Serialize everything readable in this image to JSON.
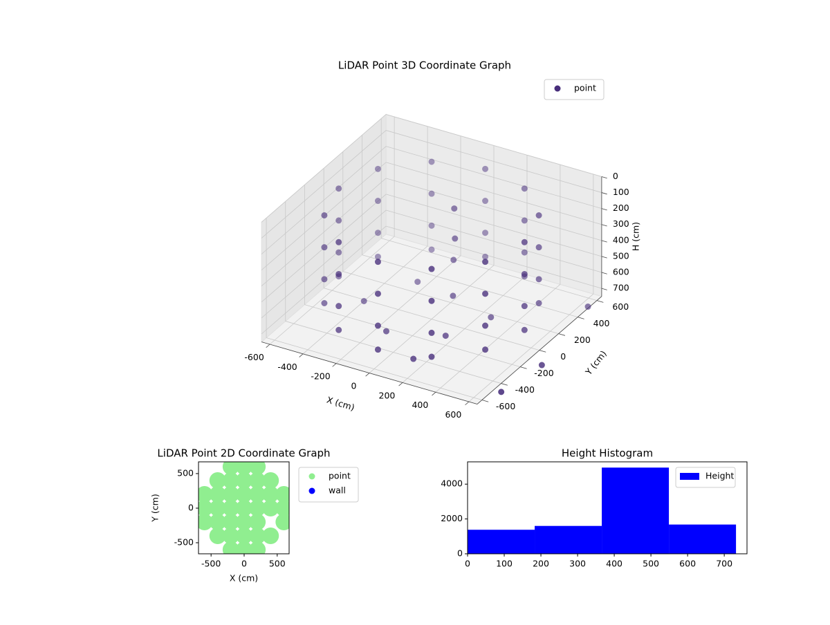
{
  "chart_data": [
    {
      "type": "scatter3d",
      "title": "LiDAR Point 3D Coordinate Graph",
      "xlabel": "X (cm)",
      "ylabel": "Y (cm)",
      "zlabel": "H (cm)",
      "xlim": [
        -650,
        650
      ],
      "ylim": [
        -650,
        650
      ],
      "zlim": [
        0,
        750
      ],
      "zinverted": true,
      "xticks": [
        -600,
        -400,
        -200,
        0,
        200,
        400,
        600
      ],
      "yticks": [
        -600,
        -400,
        -200,
        0,
        200,
        400,
        600
      ],
      "zticks": [
        0,
        100,
        200,
        300,
        400,
        500,
        600,
        700
      ],
      "grid": true,
      "legend": "upper right",
      "series": [
        {
          "name": "point",
          "color": "#472d7b",
          "x": [
            560,
            485,
            280,
            0,
            -280,
            -485,
            -560,
            -485,
            -280,
            0,
            280,
            485,
            560,
            485,
            280,
            0,
            -280,
            -485,
            -560,
            -485,
            -280,
            0,
            280,
            485,
            560,
            485,
            280,
            0,
            -280,
            -485,
            -560,
            -485,
            -280,
            0,
            280,
            485,
            560,
            485,
            280,
            0,
            -280,
            -485,
            -560,
            -485,
            -280,
            0,
            280,
            485,
            50,
            60,
            40,
            100,
            -200,
            200,
            -100,
            300,
            150,
            -350,
            700,
            780,
            720
          ],
          "y": [
            0,
            280,
            485,
            560,
            485,
            280,
            0,
            -280,
            -485,
            -560,
            -485,
            -280,
            0,
            280,
            485,
            560,
            485,
            280,
            0,
            -280,
            -485,
            -560,
            -485,
            -280,
            0,
            280,
            485,
            560,
            485,
            280,
            0,
            -280,
            -485,
            -560,
            -485,
            -280,
            0,
            280,
            485,
            560,
            485,
            280,
            0,
            -280,
            -485,
            -560,
            -485,
            -280,
            150,
            140,
            160,
            50,
            200,
            -200,
            -300,
            100,
            -450,
            -100,
            420,
            -200,
            -520
          ],
          "z": [
            100,
            100,
            100,
            100,
            100,
            100,
            100,
            100,
            100,
            100,
            100,
            100,
            300,
            300,
            300,
            300,
            300,
            300,
            300,
            300,
            300,
            300,
            300,
            300,
            500,
            500,
            500,
            500,
            500,
            500,
            500,
            500,
            500,
            500,
            500,
            500,
            650,
            650,
            650,
            650,
            650,
            650,
            650,
            650,
            650,
            650,
            650,
            650,
            120,
            300,
            450,
            600,
            680,
            690,
            700,
            700,
            720,
            690,
            680,
            700,
            720
          ]
        }
      ]
    },
    {
      "type": "scatter",
      "title": "LiDAR Point 2D Coordinate Graph",
      "xlabel": "X (cm)",
      "ylabel": "Y (cm)",
      "xlim": [
        -690,
        680
      ],
      "ylim": [
        -660,
        670
      ],
      "xticks": [
        -500,
        0,
        500
      ],
      "yticks": [
        -500,
        0,
        500
      ],
      "legend": "outside right",
      "series": [
        {
          "name": "point",
          "color": "#90ee90",
          "x": [
            -600,
            -600,
            -600,
            -400,
            -400,
            -400,
            -400,
            -400,
            -200,
            -200,
            -200,
            -200,
            -200,
            -200,
            -200,
            0,
            0,
            0,
            0,
            0,
            0,
            0,
            200,
            200,
            200,
            200,
            200,
            200,
            200,
            400,
            400,
            400,
            400,
            600,
            600,
            600
          ],
          "y": [
            -200,
            0,
            200,
            -400,
            -200,
            0,
            200,
            400,
            -600,
            -400,
            -200,
            0,
            200,
            400,
            600,
            -600,
            -400,
            -200,
            0,
            200,
            400,
            600,
            -600,
            -400,
            -200,
            0,
            200,
            400,
            600,
            -400,
            0,
            200,
            400,
            -200,
            0,
            200
          ]
        },
        {
          "name": "wall",
          "color": "#0000ff",
          "x": [],
          "y": []
        }
      ]
    },
    {
      "type": "histogram",
      "title": "Height Histogram",
      "xlim": [
        0,
        762
      ],
      "ylim": [
        0,
        5280
      ],
      "xticks": [
        0,
        100,
        200,
        300,
        400,
        500,
        600,
        700
      ],
      "yticks": [
        0,
        2000,
        4000
      ],
      "legend": "upper right",
      "bins": [
        0,
        183,
        366,
        549,
        732
      ],
      "series": [
        {
          "name": "Height",
          "color": "#0000ff",
          "values": [
            1380,
            1600,
            4950,
            1680
          ]
        }
      ]
    }
  ]
}
